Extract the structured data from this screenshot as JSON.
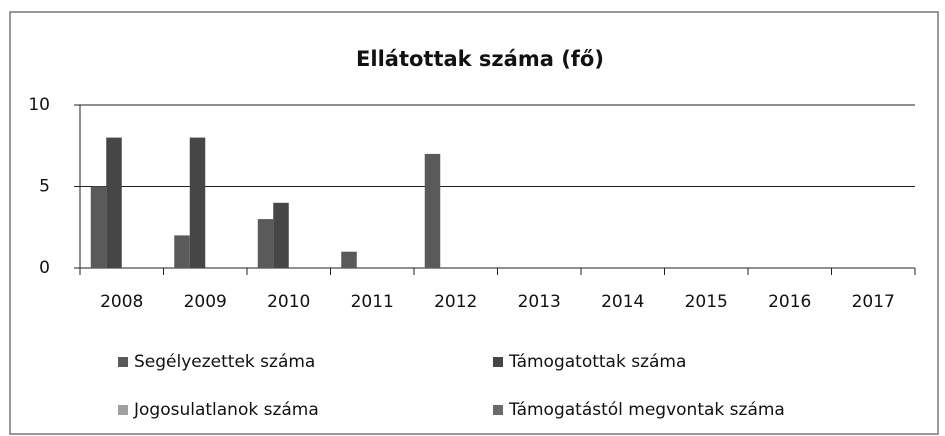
{
  "chart_data": {
    "type": "bar",
    "title": "Ellátottak száma (fő)",
    "categories": [
      "2008",
      "2009",
      "2010",
      "2011",
      "2012",
      "2013",
      "2014",
      "2015",
      "2016",
      "2017"
    ],
    "series": [
      {
        "name": "Segélyezettek száma",
        "color": "#5a5a5a",
        "values": [
          5,
          2,
          3,
          1,
          7,
          0,
          0,
          0,
          0,
          0
        ]
      },
      {
        "name": "Támogatottak száma",
        "color": "#464646",
        "values": [
          8,
          8,
          4,
          0,
          0,
          0,
          0,
          0,
          0,
          0
        ]
      },
      {
        "name": "Jogosulatlanok száma",
        "color": "#a0a0a0",
        "values": [
          0,
          0,
          0,
          0,
          0,
          0,
          0,
          0,
          0,
          0
        ]
      },
      {
        "name": "Támogatástól megvontak száma",
        "color": "#6a6a6a",
        "values": [
          0,
          0,
          0,
          0,
          0,
          0,
          0,
          0,
          0,
          0
        ]
      }
    ],
    "ylim": [
      0,
      10
    ],
    "yticks": [
      0,
      5,
      10
    ],
    "grid": true
  }
}
